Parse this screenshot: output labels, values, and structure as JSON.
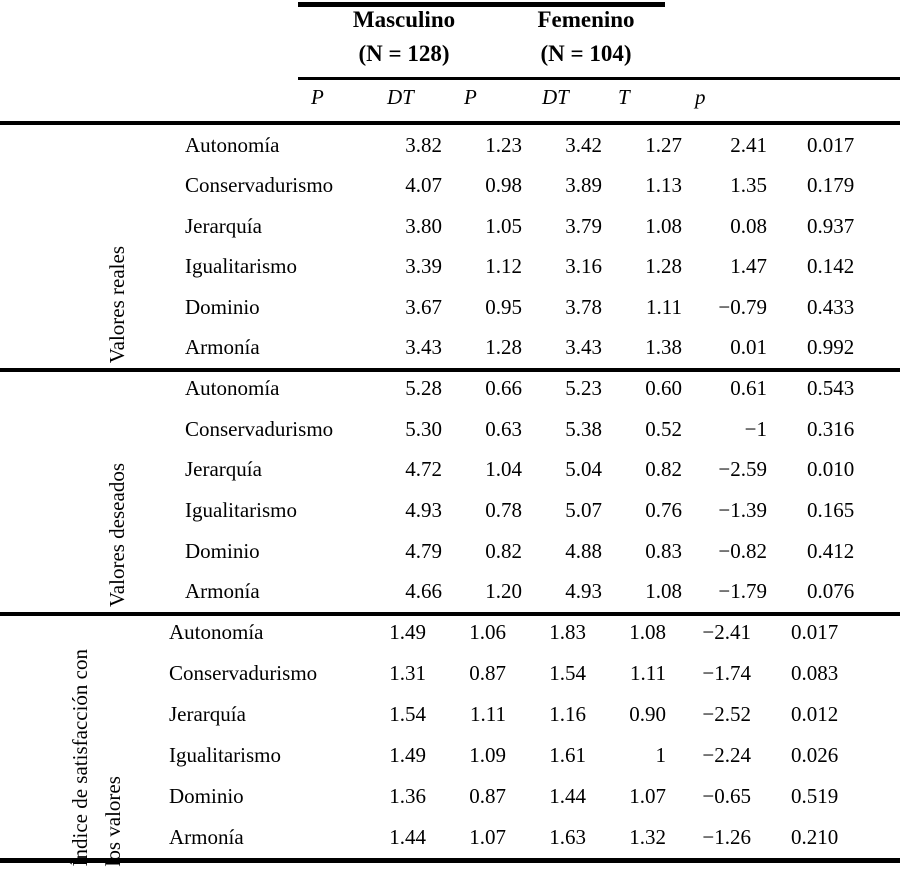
{
  "table": {
    "groups": [
      {
        "name": "Masculino",
        "n_label": "(N = 128)"
      },
      {
        "name": "Femenino",
        "n_label": "(N = 104)"
      }
    ],
    "columns": [
      "P",
      "DT",
      "P",
      "DT",
      "T",
      "p"
    ],
    "sections": [
      {
        "label": {
          "line1": "Valores reales"
        },
        "rows": [
          {
            "label": "Autonomía",
            "values": [
              "3.82",
              "1.23",
              "3.42",
              "1.27",
              "2.41",
              "0.017"
            ]
          },
          {
            "label": "Conservadurismo",
            "values": [
              "4.07",
              "0.98",
              "3.89",
              "1.13",
              "1.35",
              "0.179"
            ]
          },
          {
            "label": "Jerarquía",
            "values": [
              "3.80",
              "1.05",
              "3.79",
              "1.08",
              "0.08",
              "0.937"
            ]
          },
          {
            "label": "Igualitarismo",
            "values": [
              "3.39",
              "1.12",
              "3.16",
              "1.28",
              "1.47",
              "0.142"
            ]
          },
          {
            "label": "Dominio",
            "values": [
              "3.67",
              "0.95",
              "3.78",
              "1.11",
              "−0.79",
              "0.433"
            ]
          },
          {
            "label": "Armonía",
            "values": [
              "3.43",
              "1.28",
              "3.43",
              "1.38",
              "0.01",
              "0.992"
            ]
          }
        ]
      },
      {
        "label": {
          "line1": "Valores deseados"
        },
        "rows": [
          {
            "label": "Autonomía",
            "values": [
              "5.28",
              "0.66",
              "5.23",
              "0.60",
              "0.61",
              "0.543"
            ]
          },
          {
            "label": "Conservadurismo",
            "values": [
              "5.30",
              "0.63",
              "5.38",
              "0.52",
              "−1",
              "0.316"
            ]
          },
          {
            "label": "Jerarquía",
            "values": [
              "4.72",
              "1.04",
              "5.04",
              "0.82",
              "−2.59",
              "0.010"
            ]
          },
          {
            "label": "Igualitarismo",
            "values": [
              "4.93",
              "0.78",
              "5.07",
              "0.76",
              "−1.39",
              "0.165"
            ]
          },
          {
            "label": "Dominio",
            "values": [
              "4.79",
              "0.82",
              "4.88",
              "0.83",
              "−0.82",
              "0.412"
            ]
          },
          {
            "label": "Armonía",
            "values": [
              "4.66",
              "1.20",
              "4.93",
              "1.08",
              "−1.79",
              "0.076"
            ]
          }
        ]
      },
      {
        "label": {
          "line1": "Índice de satisfacción con",
          "line2": "los valores"
        },
        "rows": [
          {
            "label": "Autonomía",
            "values": [
              "1.49",
              "1.06",
              "1.83",
              "1.08",
              "−2.41",
              "0.017"
            ]
          },
          {
            "label": "Conservadurismo",
            "values": [
              "1.31",
              "0.87",
              "1.54",
              "1.11",
              "−1.74",
              "0.083"
            ]
          },
          {
            "label": "Jerarquía",
            "values": [
              "1.54",
              "1.11",
              "1.16",
              "0.90",
              "−2.52",
              "0.012"
            ]
          },
          {
            "label": "Igualitarismo",
            "values": [
              "1.49",
              "1.09",
              "1.61",
              "1",
              "−2.24",
              "0.026"
            ]
          },
          {
            "label": "Dominio",
            "values": [
              "1.36",
              "0.87",
              "1.44",
              "1.07",
              "−0.65",
              "0.519"
            ]
          },
          {
            "label": "Armonía",
            "values": [
              "1.44",
              "1.07",
              "1.63",
              "1.32",
              "−1.26",
              "0.210"
            ]
          }
        ]
      }
    ]
  }
}
